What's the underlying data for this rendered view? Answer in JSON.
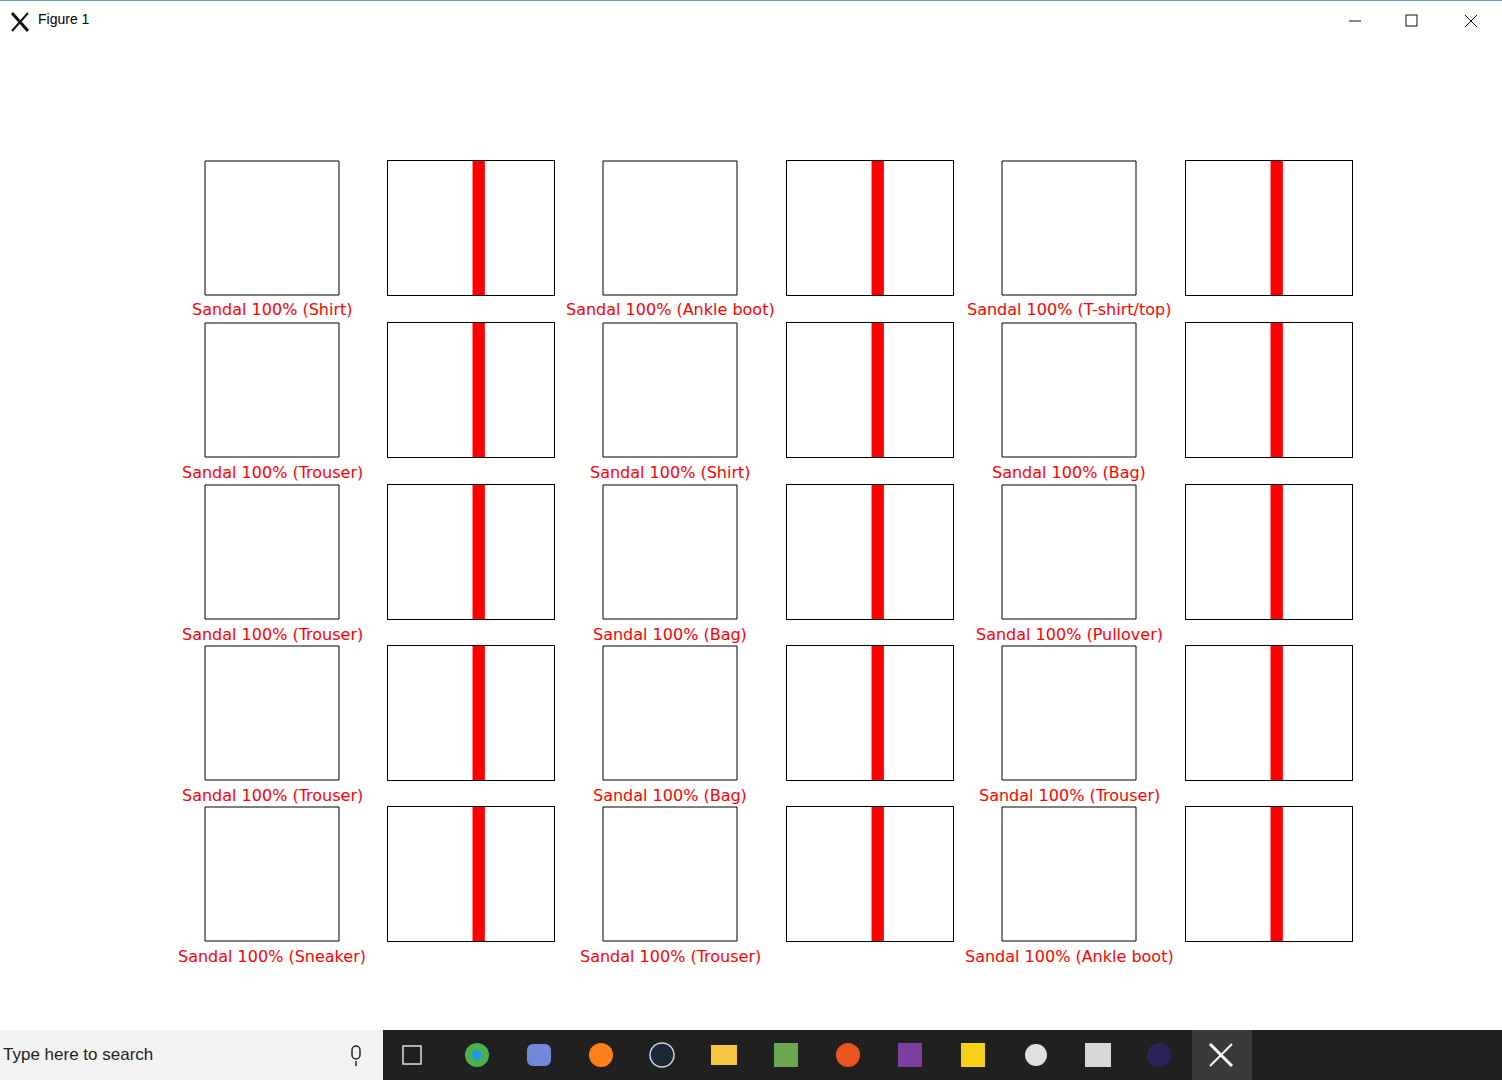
{
  "window": {
    "title": "Figure 1"
  },
  "taskbar": {
    "search": "Type here to search"
  },
  "chart_data": [
    {
      "type": "bar",
      "annotation": "Sandal 100% (Shirt)",
      "x": [
        0,
        1,
        2,
        3,
        4,
        5,
        6,
        7,
        8,
        9
      ],
      "values": [
        0,
        0,
        0,
        0,
        0,
        1,
        0,
        0,
        0,
        0
      ],
      "colors": [
        "#777777",
        "#777777",
        "#777777",
        "#777777",
        "#777777",
        "#ff0000",
        "#0000ff",
        "#777777",
        "#777777",
        "#777777"
      ],
      "xlim": [
        -0.89,
        9.89
      ],
      "ylim": [
        0,
        1
      ],
      "tick_labels": false,
      "grid": false
    },
    {
      "type": "bar",
      "annotation": "Sandal 100% (Ankle boot)",
      "x": [
        0,
        1,
        2,
        3,
        4,
        5,
        6,
        7,
        8,
        9
      ],
      "values": [
        0,
        0,
        0,
        0,
        0,
        1,
        0,
        0,
        0,
        0
      ],
      "colors": [
        "#777777",
        "#777777",
        "#777777",
        "#777777",
        "#777777",
        "#ff0000",
        "#777777",
        "#777777",
        "#777777",
        "#0000ff"
      ],
      "xlim": [
        -0.89,
        9.89
      ],
      "ylim": [
        0,
        1
      ],
      "tick_labels": false,
      "grid": false
    },
    {
      "type": "bar",
      "annotation": "Sandal 100% (T-shirt/top)",
      "x": [
        0,
        1,
        2,
        3,
        4,
        5,
        6,
        7,
        8,
        9
      ],
      "values": [
        0,
        0,
        0,
        0,
        0,
        1,
        0,
        0,
        0,
        0
      ],
      "colors": [
        "#0000ff",
        "#777777",
        "#777777",
        "#777777",
        "#777777",
        "#ff0000",
        "#777777",
        "#777777",
        "#777777",
        "#777777"
      ],
      "xlim": [
        -0.89,
        9.89
      ],
      "ylim": [
        0,
        1
      ],
      "tick_labels": false,
      "grid": false
    },
    {
      "type": "bar",
      "annotation": "Sandal 100% (Trouser)",
      "x": [
        0,
        1,
        2,
        3,
        4,
        5,
        6,
        7,
        8,
        9
      ],
      "values": [
        0,
        0,
        0,
        0,
        0,
        1,
        0,
        0,
        0,
        0
      ],
      "colors": [
        "#777777",
        "#0000ff",
        "#777777",
        "#777777",
        "#777777",
        "#ff0000",
        "#777777",
        "#777777",
        "#777777",
        "#777777"
      ],
      "xlim": [
        -0.89,
        9.89
      ],
      "ylim": [
        0,
        1
      ],
      "tick_labels": false,
      "grid": false
    },
    {
      "type": "bar",
      "annotation": "Sandal 100% (Shirt)",
      "x": [
        0,
        1,
        2,
        3,
        4,
        5,
        6,
        7,
        8,
        9
      ],
      "values": [
        0,
        0,
        0,
        0,
        0,
        1,
        0,
        0,
        0,
        0
      ],
      "colors": [
        "#777777",
        "#777777",
        "#777777",
        "#777777",
        "#777777",
        "#ff0000",
        "#0000ff",
        "#777777",
        "#777777",
        "#777777"
      ],
      "xlim": [
        -0.89,
        9.89
      ],
      "ylim": [
        0,
        1
      ],
      "tick_labels": false,
      "grid": false
    },
    {
      "type": "bar",
      "annotation": "Sandal 100% (Bag)",
      "x": [
        0,
        1,
        2,
        3,
        4,
        5,
        6,
        7,
        8,
        9
      ],
      "values": [
        0,
        0,
        0,
        0,
        0,
        1,
        0,
        0,
        0,
        0
      ],
      "colors": [
        "#777777",
        "#777777",
        "#777777",
        "#777777",
        "#777777",
        "#ff0000",
        "#777777",
        "#777777",
        "#0000ff",
        "#777777"
      ],
      "xlim": [
        -0.89,
        9.89
      ],
      "ylim": [
        0,
        1
      ],
      "tick_labels": false,
      "grid": false
    },
    {
      "type": "bar",
      "annotation": "Sandal 100% (Trouser)",
      "x": [
        0,
        1,
        2,
        3,
        4,
        5,
        6,
        7,
        8,
        9
      ],
      "values": [
        0,
        0,
        0,
        0,
        0,
        1,
        0,
        0,
        0,
        0
      ],
      "colors": [
        "#777777",
        "#0000ff",
        "#777777",
        "#777777",
        "#777777",
        "#ff0000",
        "#777777",
        "#777777",
        "#777777",
        "#777777"
      ],
      "xlim": [
        -0.89,
        9.89
      ],
      "ylim": [
        0,
        1
      ],
      "tick_labels": false,
      "grid": false
    },
    {
      "type": "bar",
      "annotation": "Sandal 100% (Bag)",
      "x": [
        0,
        1,
        2,
        3,
        4,
        5,
        6,
        7,
        8,
        9
      ],
      "values": [
        0,
        0,
        0,
        0,
        0,
        1,
        0,
        0,
        0,
        0
      ],
      "colors": [
        "#777777",
        "#777777",
        "#777777",
        "#777777",
        "#777777",
        "#ff0000",
        "#777777",
        "#777777",
        "#0000ff",
        "#777777"
      ],
      "xlim": [
        -0.89,
        9.89
      ],
      "ylim": [
        0,
        1
      ],
      "tick_labels": false,
      "grid": false
    },
    {
      "type": "bar",
      "annotation": "Sandal 100% (Pullover)",
      "x": [
        0,
        1,
        2,
        3,
        4,
        5,
        6,
        7,
        8,
        9
      ],
      "values": [
        0,
        0,
        0,
        0,
        0,
        1,
        0,
        0,
        0,
        0
      ],
      "colors": [
        "#777777",
        "#777777",
        "#0000ff",
        "#777777",
        "#777777",
        "#ff0000",
        "#777777",
        "#777777",
        "#777777",
        "#777777"
      ],
      "xlim": [
        -0.89,
        9.89
      ],
      "ylim": [
        0,
        1
      ],
      "tick_labels": false,
      "grid": false
    },
    {
      "type": "bar",
      "annotation": "Sandal 100% (Trouser)",
      "x": [
        0,
        1,
        2,
        3,
        4,
        5,
        6,
        7,
        8,
        9
      ],
      "values": [
        0,
        0,
        0,
        0,
        0,
        1,
        0,
        0,
        0,
        0
      ],
      "colors": [
        "#777777",
        "#0000ff",
        "#777777",
        "#777777",
        "#777777",
        "#ff0000",
        "#777777",
        "#777777",
        "#777777",
        "#777777"
      ],
      "xlim": [
        -0.89,
        9.89
      ],
      "ylim": [
        0,
        1
      ],
      "tick_labels": false,
      "grid": false
    },
    {
      "type": "bar",
      "annotation": "Sandal 100% (Bag)",
      "x": [
        0,
        1,
        2,
        3,
        4,
        5,
        6,
        7,
        8,
        9
      ],
      "values": [
        0,
        0,
        0,
        0,
        0,
        1,
        0,
        0,
        0,
        0
      ],
      "colors": [
        "#777777",
        "#777777",
        "#777777",
        "#777777",
        "#777777",
        "#ff0000",
        "#777777",
        "#777777",
        "#0000ff",
        "#777777"
      ],
      "xlim": [
        -0.89,
        9.89
      ],
      "ylim": [
        0,
        1
      ],
      "tick_labels": false,
      "grid": false
    },
    {
      "type": "bar",
      "annotation": "Sandal 100% (Trouser)",
      "x": [
        0,
        1,
        2,
        3,
        4,
        5,
        6,
        7,
        8,
        9
      ],
      "values": [
        0,
        0,
        0,
        0,
        0,
        1,
        0,
        0,
        0,
        0
      ],
      "colors": [
        "#777777",
        "#0000ff",
        "#777777",
        "#777777",
        "#777777",
        "#ff0000",
        "#777777",
        "#777777",
        "#777777",
        "#777777"
      ],
      "xlim": [
        -0.89,
        9.89
      ],
      "ylim": [
        0,
        1
      ],
      "tick_labels": false,
      "grid": false
    },
    {
      "type": "bar",
      "annotation": "Sandal 100% (Sneaker)",
      "x": [
        0,
        1,
        2,
        3,
        4,
        5,
        6,
        7,
        8,
        9
      ],
      "values": [
        0,
        0,
        0,
        0,
        0,
        1,
        0,
        0,
        0,
        0
      ],
      "colors": [
        "#777777",
        "#777777",
        "#777777",
        "#777777",
        "#777777",
        "#ff0000",
        "#777777",
        "#0000ff",
        "#777777",
        "#777777"
      ],
      "xlim": [
        -0.89,
        9.89
      ],
      "ylim": [
        0,
        1
      ],
      "tick_labels": false,
      "grid": false
    },
    {
      "type": "bar",
      "annotation": "Sandal 100% (Trouser)",
      "x": [
        0,
        1,
        2,
        3,
        4,
        5,
        6,
        7,
        8,
        9
      ],
      "values": [
        0,
        0,
        0,
        0,
        0,
        1,
        0,
        0,
        0,
        0
      ],
      "colors": [
        "#777777",
        "#0000ff",
        "#777777",
        "#777777",
        "#777777",
        "#ff0000",
        "#777777",
        "#777777",
        "#777777",
        "#777777"
      ],
      "xlim": [
        -0.89,
        9.89
      ],
      "ylim": [
        0,
        1
      ],
      "tick_labels": false,
      "grid": false
    },
    {
      "type": "bar",
      "annotation": "Sandal 100% (Ankle boot)",
      "x": [
        0,
        1,
        2,
        3,
        4,
        5,
        6,
        7,
        8,
        9
      ],
      "values": [
        0,
        0,
        0,
        0,
        0,
        1,
        0,
        0,
        0,
        0
      ],
      "colors": [
        "#777777",
        "#777777",
        "#777777",
        "#777777",
        "#777777",
        "#ff0000",
        "#777777",
        "#777777",
        "#777777",
        "#0000ff"
      ],
      "xlim": [
        -0.89,
        9.89
      ],
      "ylim": [
        0,
        1
      ],
      "tick_labels": false,
      "grid": false
    }
  ]
}
